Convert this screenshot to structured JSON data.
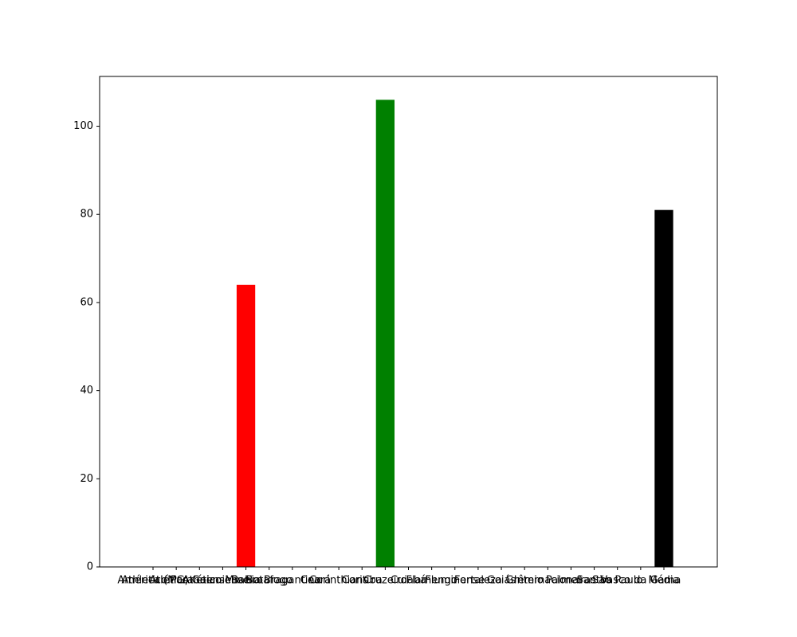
{
  "chart_data": {
    "type": "bar",
    "title": "",
    "xlabel": "",
    "ylabel": "",
    "ylim": [
      0,
      111.3
    ],
    "yticks": [
      0,
      20,
      40,
      60,
      80,
      100
    ],
    "grid": false,
    "categories": [
      "América (MG)",
      "Athletico Paranaense",
      "Atlético Goianiense",
      "Atlético Mineiro",
      "Bahia",
      "Botafogo",
      "Bragantino",
      "Ceará",
      "Corinthians",
      "Coritiba",
      "Cruzeiro",
      "Cuiabá",
      "Flamengo",
      "Fluminense",
      "Fortaleza",
      "Goiás",
      "Grêmio",
      "Internacional",
      "Palmeiras",
      "Santos",
      "São Paulo",
      "Vasco da Gama",
      "Média"
    ],
    "series": [
      {
        "values": [
          null,
          null,
          null,
          null,
          64,
          null,
          null,
          null,
          null,
          null,
          106,
          null,
          null,
          null,
          null,
          null,
          null,
          null,
          null,
          null,
          null,
          null,
          81
        ],
        "colors": [
          "#ff0000",
          "#ff0000",
          "#ff0000",
          "#ff0000",
          "#ff0000",
          "#ff0000",
          "#ff0000",
          "#ff0000",
          "#ff0000",
          "#ff0000",
          "#008000",
          "#ff0000",
          "#ff0000",
          "#ff0000",
          "#ff0000",
          "#ff0000",
          "#ff0000",
          "#ff0000",
          "#ff0000",
          "#ff0000",
          "#ff0000",
          "#ff0000",
          "#000000"
        ]
      }
    ]
  }
}
